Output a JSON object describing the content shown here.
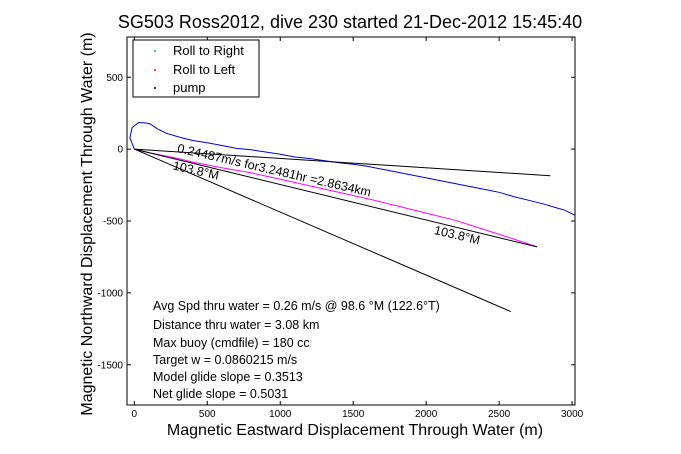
{
  "chart_data": {
    "type": "line",
    "title": "SG503 Ross2012, dive 230 started 21-Dec-2012 15:45:40",
    "xlabel": "Magnetic Eastward Displacement Through Water (m)",
    "ylabel": "Magnetic Northward Displacement Through Water (m)",
    "xlim": [
      -50,
      3020
    ],
    "ylim": [
      -1780,
      780
    ],
    "xticks": [
      0,
      500,
      1000,
      1500,
      2000,
      2500,
      3000
    ],
    "yticks": [
      -1500,
      -1000,
      -500,
      0,
      500
    ],
    "grid": false,
    "legend": {
      "placement": "top-left",
      "entries": [
        {
          "label": "Roll to Right",
          "color": "#00cc00"
        },
        {
          "label": "Roll to Left",
          "color": "#ff0000"
        },
        {
          "label": "pump",
          "color": "#000000"
        }
      ]
    },
    "series": [
      {
        "color": "#0000cc",
        "points": [
          [
            0,
            0
          ],
          [
            -30,
            80
          ],
          [
            -15,
            150
          ],
          [
            30,
            185
          ],
          [
            80,
            182
          ],
          [
            110,
            175
          ],
          [
            160,
            140
          ],
          [
            220,
            110
          ],
          [
            320,
            80
          ],
          [
            400,
            60
          ],
          [
            500,
            45
          ],
          [
            600,
            25
          ],
          [
            700,
            5
          ],
          [
            800,
            -5
          ],
          [
            900,
            -20
          ],
          [
            1000,
            -35
          ],
          [
            1100,
            -55
          ],
          [
            1200,
            -65
          ],
          [
            1300,
            -80
          ],
          [
            1400,
            -95
          ],
          [
            1500,
            -105
          ],
          [
            1600,
            -120
          ],
          [
            1700,
            -140
          ],
          [
            1800,
            -160
          ],
          [
            1900,
            -180
          ],
          [
            2000,
            -200
          ],
          [
            2100,
            -220
          ],
          [
            2200,
            -240
          ],
          [
            2300,
            -260
          ],
          [
            2400,
            -280
          ],
          [
            2500,
            -300
          ],
          [
            2600,
            -330
          ],
          [
            2700,
            -355
          ],
          [
            2800,
            -380
          ],
          [
            2900,
            -410
          ],
          [
            2950,
            -425
          ],
          [
            3000,
            -450
          ],
          [
            3020,
            -460
          ]
        ]
      },
      {
        "color": "#ff00ff",
        "points": [
          [
            0,
            0
          ],
          [
            100,
            -25
          ],
          [
            200,
            -45
          ],
          [
            300,
            -65
          ],
          [
            400,
            -90
          ],
          [
            600,
            -130
          ],
          [
            800,
            -165
          ],
          [
            1000,
            -210
          ],
          [
            1200,
            -255
          ],
          [
            1400,
            -300
          ],
          [
            1600,
            -345
          ],
          [
            1800,
            -395
          ],
          [
            2000,
            -445
          ],
          [
            2200,
            -495
          ],
          [
            2400,
            -560
          ],
          [
            2600,
            -625
          ],
          [
            2760,
            -680
          ]
        ]
      },
      {
        "color": "#000000",
        "points": [
          [
            0,
            0
          ],
          [
            2850,
            -185
          ]
        ]
      },
      {
        "color": "#000000",
        "points": [
          [
            0,
            0
          ],
          [
            2760,
            -680
          ]
        ]
      },
      {
        "color": "#000000",
        "points": [
          [
            0,
            0
          ],
          [
            2580,
            -1130
          ]
        ]
      }
    ],
    "annotations": [
      {
        "text": "0.24487m/s for3.2481hr =2.8634km",
        "x": 290,
        "y": -20,
        "rotation_deg": 13
      },
      {
        "text": "103.8°M",
        "x": 260,
        "y": -140,
        "rotation_deg": 13
      },
      {
        "text": "103.8°M",
        "x": 2050,
        "y": -590,
        "rotation_deg": 13
      }
    ],
    "stats": {
      "line1": "Avg Spd thru water =  0.26 m/s @  98.6   °M (122.6°T)",
      "line2": "Distance thru water =  3.08 km",
      "line3": "Max buoy (cmdfile) = 180 cc",
      "line4": "Target w = 0.0860215 m/s",
      "line5": "Model glide slope = 0.3513",
      "line6": "Net glide slope = 0.5031"
    }
  }
}
